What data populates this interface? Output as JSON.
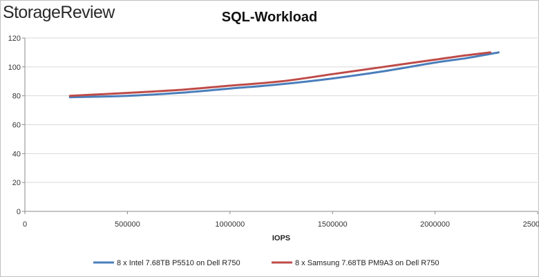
{
  "brand": {
    "logo_text": "StorageReview"
  },
  "chart_data": {
    "type": "line",
    "title": "SQL-Workload",
    "xlabel": "IOPS",
    "ylabel": "",
    "xlim": [
      0,
      2500000
    ],
    "ylim": [
      0,
      120
    ],
    "x_ticks": [
      0,
      500000,
      1000000,
      1500000,
      2000000,
      2500000
    ],
    "x_tick_labels": [
      "0",
      "500000",
      "1000000",
      "1500000",
      "2000000",
      "2500000"
    ],
    "y_ticks": [
      0,
      20,
      40,
      60,
      80,
      100,
      120
    ],
    "y_tick_labels": [
      "0",
      "20",
      "40",
      "60",
      "80",
      "100",
      "120"
    ],
    "grid": "horizontal",
    "legend_position": "bottom",
    "series": [
      {
        "name": "8 x Intel 7.68TB P5510 on Dell R750",
        "color": "#4a7ebb",
        "x": [
          220000,
          500000,
          750000,
          1000000,
          1250000,
          1500000,
          1750000,
          2000000,
          2150000,
          2310000
        ],
        "y": [
          79,
          80,
          82,
          85,
          88,
          92,
          97,
          103,
          106,
          110
        ]
      },
      {
        "name": "8 x Samsung 7.68TB PM9A3 on Dell R750",
        "color": "#be4b48",
        "x": [
          220000,
          500000,
          750000,
          1000000,
          1250000,
          1500000,
          1750000,
          2000000,
          2150000,
          2270000
        ],
        "y": [
          80,
          82,
          84,
          87,
          90,
          95,
          100,
          105,
          108,
          110
        ]
      }
    ]
  }
}
